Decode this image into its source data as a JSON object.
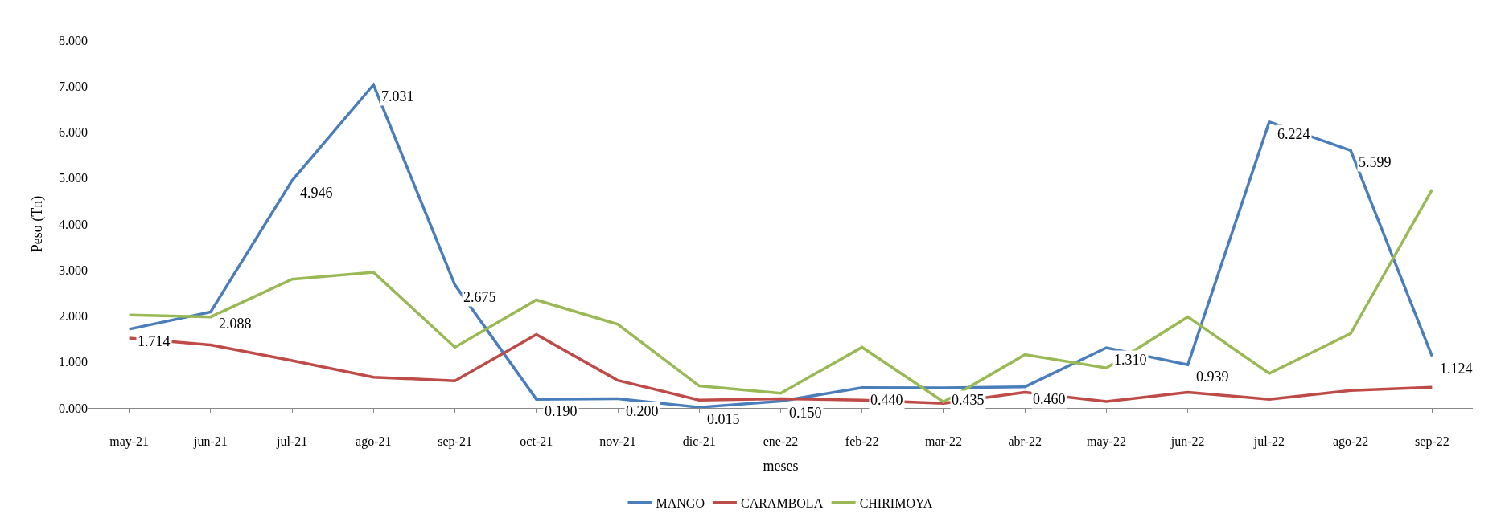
{
  "chart_data": {
    "type": "line",
    "xlabel": "meses",
    "ylabel": "Peso (Tn)",
    "categories": [
      "may-21",
      "jun-21",
      "jul-21",
      "ago-21",
      "sep-21",
      "oct-21",
      "nov-21",
      "dic-21",
      "ene-22",
      "feb-22",
      "mar-22",
      "abr-22",
      "may-22",
      "jun-22",
      "jul-22",
      "ago-22",
      "sep-22"
    ],
    "series": [
      {
        "name": "MANGO",
        "color": "#4a7ebb",
        "values": [
          1.714,
          2.088,
          4.946,
          7.031,
          2.675,
          0.19,
          0.2,
          0.015,
          0.15,
          0.44,
          0.435,
          0.46,
          1.31,
          0.939,
          6.224,
          5.599,
          1.124
        ],
        "value_labels": [
          "1.714",
          "2.088",
          "4.946",
          "7.031",
          "2.675",
          "0.190",
          "0.200",
          "0.015",
          "0.150",
          "0.440",
          "0.435",
          "0.460",
          "1.310",
          "0.939",
          "6.224",
          "5.599",
          "1.124"
        ]
      },
      {
        "name": "CARAMBOLA",
        "color": "#be4b48",
        "values": [
          1.52,
          1.37,
          1.03,
          0.67,
          0.59,
          1.6,
          0.6,
          0.17,
          0.2,
          0.17,
          0.1,
          0.34,
          0.14,
          0.34,
          0.19,
          0.38,
          0.45
        ]
      },
      {
        "name": "CHIRIMOYA",
        "color": "#98b954",
        "values": [
          2.02,
          1.98,
          2.8,
          2.95,
          1.32,
          2.35,
          1.82,
          0.48,
          0.32,
          1.32,
          0.13,
          1.16,
          0.87,
          1.98,
          0.75,
          1.62,
          4.75
        ]
      }
    ],
    "ylim": [
      0,
      8
    ],
    "yticks": [
      {
        "value": 0,
        "label": "0.000"
      },
      {
        "value": 1,
        "label": "1.000"
      },
      {
        "value": 2,
        "label": "2.000"
      },
      {
        "value": 3,
        "label": "3.000"
      },
      {
        "value": 4,
        "label": "4.000"
      },
      {
        "value": 5,
        "label": "5.000"
      },
      {
        "value": 6,
        "label": "6.000"
      },
      {
        "value": 7,
        "label": "7.000"
      },
      {
        "value": 8,
        "label": "8.000"
      }
    ],
    "legend": "bottom",
    "marker": "none",
    "line_style": "solid"
  }
}
